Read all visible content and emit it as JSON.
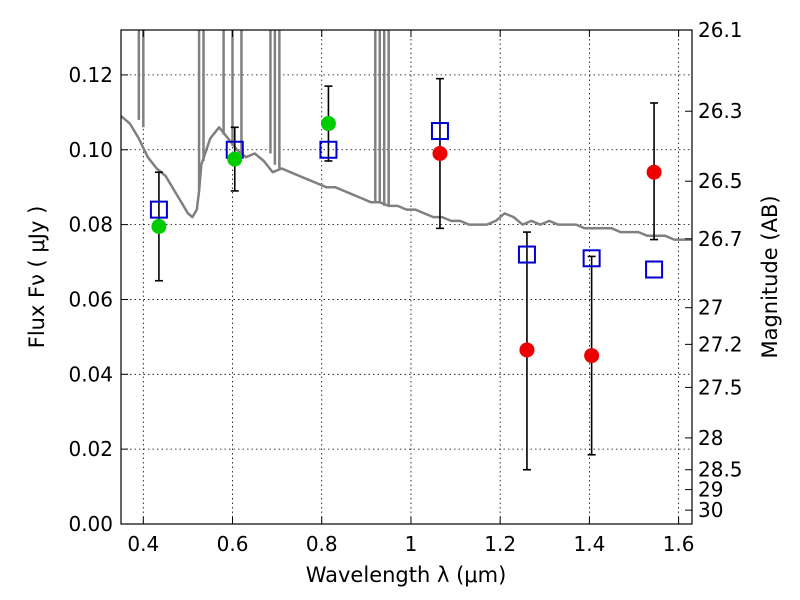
{
  "chart_data": {
    "type": "scatter",
    "xlabel": "Wavelength  λ (μm)",
    "ylabel": "Flux  Fν  ( μJy )",
    "ylabel_right": "Magnitude (AB)",
    "xlim": [
      0.35,
      1.63
    ],
    "ylim": [
      0.0,
      0.132
    ],
    "grid": true,
    "x_ticks": [
      0.4,
      0.6,
      0.8,
      1.0,
      1.2,
      1.4,
      1.6
    ],
    "x_tick_labels": [
      "0.4",
      "0.6",
      "0.8",
      "1",
      "1.2",
      "1.4",
      "1.6"
    ],
    "y_ticks": [
      0.0,
      0.02,
      0.04,
      0.06,
      0.08,
      0.1,
      0.12
    ],
    "y_tick_labels": [
      "0.00",
      "0.02",
      "0.04",
      "0.06",
      "0.08",
      "0.10",
      "0.12"
    ],
    "right_ticks": [
      {
        "label": "26.1",
        "flux": 0.132
      },
      {
        "label": "26.3",
        "flux": 0.1103
      },
      {
        "label": "26.5",
        "flux": 0.0916
      },
      {
        "label": "26.7",
        "flux": 0.0762
      },
      {
        "label": "27",
        "flux": 0.0578
      },
      {
        "label": "27.2",
        "flux": 0.048
      },
      {
        "label": "27.5",
        "flux": 0.0365
      },
      {
        "label": "28",
        "flux": 0.023
      },
      {
        "label": "28.5",
        "flux": 0.0145
      },
      {
        "label": "29",
        "flux": 0.0092
      },
      {
        "label": "30",
        "flux": 0.0037
      }
    ],
    "series": [
      {
        "kind": "model-spectrum",
        "color": "#808080",
        "x": [
          0.35,
          0.37,
          0.39,
          0.41,
          0.43,
          0.45,
          0.47,
          0.49,
          0.5,
          0.51,
          0.52,
          0.525,
          0.53,
          0.55,
          0.57,
          0.59,
          0.61,
          0.63,
          0.65,
          0.67,
          0.69,
          0.71,
          0.73,
          0.75,
          0.77,
          0.79,
          0.81,
          0.83,
          0.85,
          0.87,
          0.89,
          0.91,
          0.93,
          0.95,
          0.97,
          0.99,
          1.01,
          1.03,
          1.05,
          1.07,
          1.09,
          1.11,
          1.13,
          1.15,
          1.17,
          1.19,
          1.21,
          1.23,
          1.25,
          1.27,
          1.29,
          1.31,
          1.33,
          1.35,
          1.37,
          1.39,
          1.41,
          1.43,
          1.45,
          1.47,
          1.49,
          1.51,
          1.53,
          1.55,
          1.57,
          1.59,
          1.61,
          1.63
        ],
        "y": [
          0.109,
          0.107,
          0.103,
          0.098,
          0.095,
          0.093,
          0.089,
          0.085,
          0.083,
          0.082,
          0.084,
          0.089,
          0.096,
          0.103,
          0.106,
          0.103,
          0.1,
          0.098,
          0.099,
          0.097,
          0.094,
          0.095,
          0.094,
          0.093,
          0.092,
          0.091,
          0.09,
          0.09,
          0.089,
          0.088,
          0.087,
          0.086,
          0.086,
          0.085,
          0.085,
          0.084,
          0.084,
          0.083,
          0.082,
          0.082,
          0.081,
          0.081,
          0.08,
          0.08,
          0.08,
          0.081,
          0.083,
          0.082,
          0.08,
          0.081,
          0.08,
          0.081,
          0.08,
          0.08,
          0.08,
          0.079,
          0.079,
          0.079,
          0.079,
          0.078,
          0.078,
          0.078,
          0.077,
          0.077,
          0.077,
          0.076,
          0.076,
          0.076
        ],
        "spikes": [
          {
            "x": 0.39,
            "y_bottom": 0.108
          },
          {
            "x": 0.4,
            "y_bottom": 0.106
          },
          {
            "x": 0.525,
            "y_bottom": 0.089
          },
          {
            "x": 0.535,
            "y_bottom": 0.097
          },
          {
            "x": 0.58,
            "y_bottom": 0.104
          },
          {
            "x": 0.6,
            "y_bottom": 0.101
          },
          {
            "x": 0.62,
            "y_bottom": 0.099
          },
          {
            "x": 0.685,
            "y_bottom": 0.099
          },
          {
            "x": 0.695,
            "y_bottom": 0.096
          },
          {
            "x": 0.705,
            "y_bottom": 0.095
          },
          {
            "x": 0.92,
            "y_bottom": 0.086
          },
          {
            "x": 0.93,
            "y_bottom": 0.086
          },
          {
            "x": 0.94,
            "y_bottom": 0.085
          },
          {
            "x": 0.95,
            "y_bottom": 0.085
          }
        ]
      },
      {
        "kind": "model-photometry",
        "color": "#0000cc",
        "marker": "open-square",
        "x": [
          0.435,
          0.605,
          0.815,
          1.065,
          1.26,
          1.405,
          1.545
        ],
        "y": [
          0.084,
          0.1,
          0.1,
          0.105,
          0.072,
          0.071,
          0.068
        ]
      },
      {
        "kind": "detections",
        "color": "#00cc00",
        "marker": "filled-circle",
        "x": [
          0.435,
          0.605,
          0.815
        ],
        "y": [
          0.0795,
          0.0975,
          0.107
        ],
        "err_low": [
          0.065,
          0.089,
          0.097
        ],
        "err_high": [
          0.094,
          0.106,
          0.117
        ]
      },
      {
        "kind": "measurements",
        "color": "#ee0000",
        "marker": "filled-circle",
        "x": [
          1.065,
          1.26,
          1.405,
          1.545
        ],
        "y": [
          0.099,
          0.0465,
          0.045,
          0.094
        ],
        "err_low": [
          0.079,
          0.0145,
          0.0185,
          0.076
        ],
        "err_high": [
          0.119,
          0.078,
          0.0715,
          0.1125
        ]
      }
    ]
  }
}
